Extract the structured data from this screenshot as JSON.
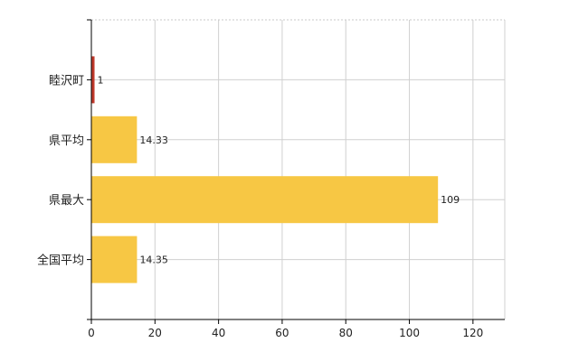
{
  "chart_data": {
    "type": "bar",
    "orientation": "horizontal",
    "categories": [
      "睦沢町",
      "県平均",
      "県最大",
      "全国平均"
    ],
    "values": [
      1,
      14.33,
      109,
      14.35
    ],
    "data_labels": [
      "1",
      "14.33",
      "109",
      "14.35"
    ],
    "bar_colors": [
      "#c0392b",
      "#f7c744",
      "#f7c744",
      "#f7c744"
    ],
    "xlim": [
      0,
      130
    ],
    "x_ticks": [
      0,
      20,
      40,
      60,
      80,
      100,
      120
    ],
    "grid": true,
    "legend": "none",
    "title": "",
    "xlabel": "",
    "ylabel": ""
  }
}
